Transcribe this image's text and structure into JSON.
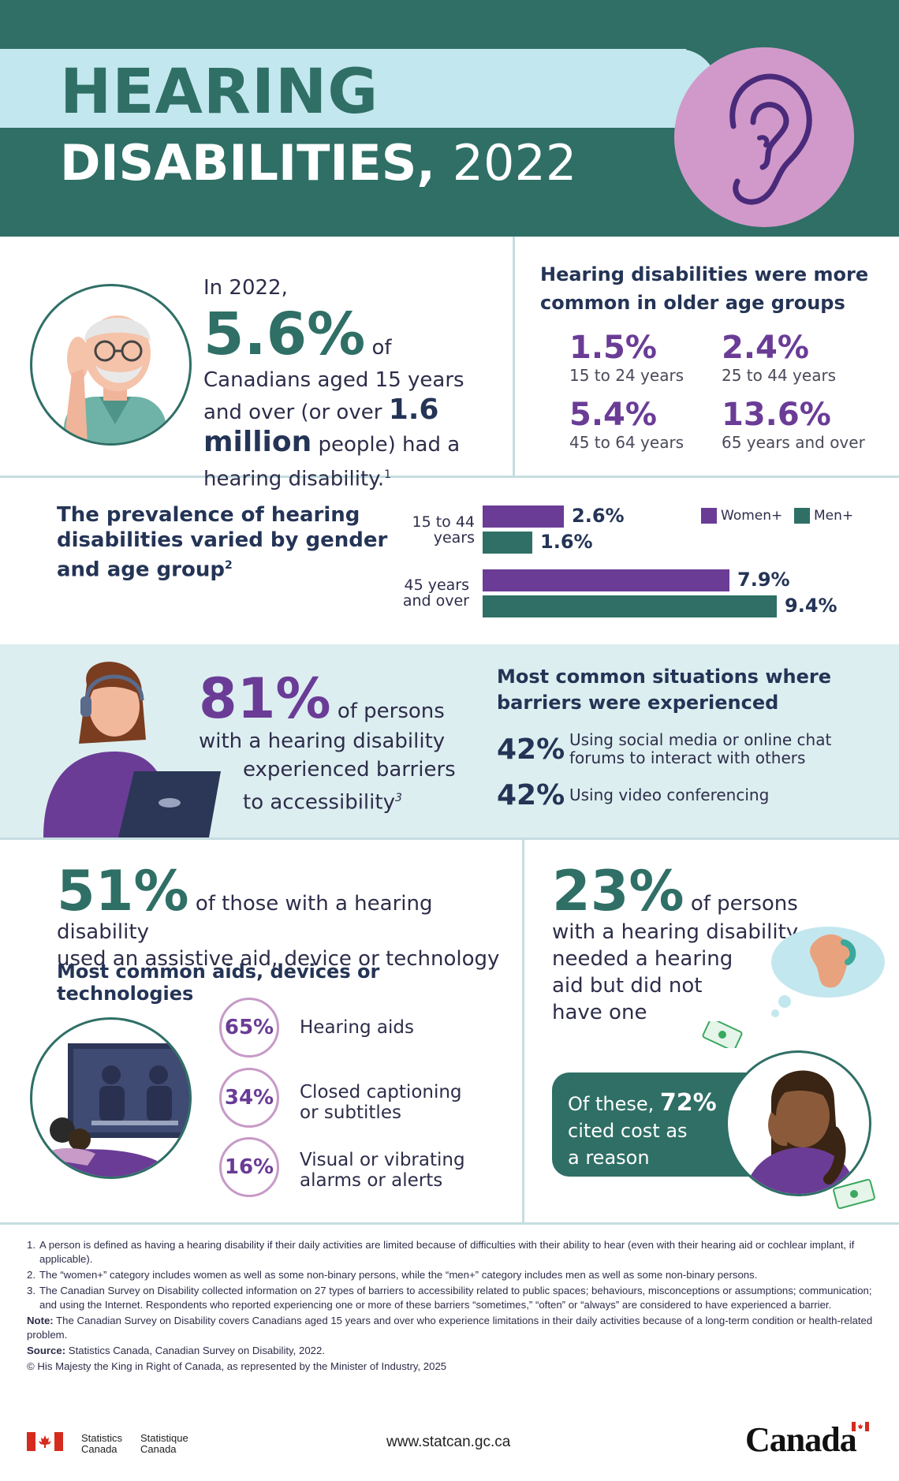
{
  "header": {
    "title_line1": "HEARING",
    "title_line2": "DISABILITIES,",
    "title_year": "2022",
    "colors": {
      "teal": "#2f6f66",
      "light_band": "#c3e7ee",
      "ear_circle": "#d199c9",
      "purple": "#6a3c96"
    },
    "icon": "ear-icon"
  },
  "overall": {
    "lead": "In 2022,",
    "pct": "5.6%",
    "t1": " of Canadians aged 15 years and over (or over ",
    "count": "1.6 million",
    "t2": " people) had a hearing disability.",
    "note": "1"
  },
  "age_groups": {
    "title": "Hearing disabilities were more common in older age groups",
    "items": [
      {
        "pct": "1.5%",
        "label": "15 to 24 years"
      },
      {
        "pct": "2.4%",
        "label": "25 to 44 years"
      },
      {
        "pct": "5.4%",
        "label": "45 to 64 years"
      },
      {
        "pct": "13.6%",
        "label": "65 years and over"
      }
    ]
  },
  "chart_data": {
    "type": "bar",
    "title": "The prevalence of hearing disabilities varied by gender and age group",
    "title_note": "2",
    "categories": [
      "15 to 44 years",
      "45 years and over"
    ],
    "series": [
      {
        "name": "Women+",
        "color": "#6a3c96",
        "values": [
          2.6,
          7.9
        ],
        "labels": [
          "2.6%",
          "7.9%"
        ]
      },
      {
        "name": "Men+",
        "color": "#2f6f66",
        "values": [
          1.6,
          9.4
        ],
        "labels": [
          "1.6%",
          "9.4%"
        ]
      }
    ],
    "legend": "top-right",
    "cat_lines": [
      [
        "15 to 44",
        "years"
      ],
      [
        "45 years",
        "and over"
      ]
    ]
  },
  "barriers": {
    "pct": "81%",
    "t1": " of persons with a hearing disability experienced barriers to accessibility",
    "line1": "of persons",
    "line2": "with a hearing disability",
    "line3": "experienced barriers",
    "line4": "to accessibility",
    "note": "3",
    "situations_title": "Most common situations where barriers were experienced",
    "situations": [
      {
        "pct": "42%",
        "label_l1": "Using social media or online chat",
        "label_l2": "forums to interact with others"
      },
      {
        "pct": "42%",
        "label_l1": "Using video conferencing",
        "label_l2": ""
      }
    ]
  },
  "aids": {
    "pct": "51%",
    "line1": "of those with a hearing disability",
    "line2": "used an assistive aid, device or technology",
    "list_title": "Most common aids, devices or technologies",
    "items": [
      {
        "pct": "65%",
        "l1": "Hearing aids",
        "l2": ""
      },
      {
        "pct": "34%",
        "l1": "Closed captioning",
        "l2": "or subtitles"
      },
      {
        "pct": "16%",
        "l1": "Visual or vibrating",
        "l2": "alarms or alerts"
      }
    ]
  },
  "unmet": {
    "pct": "23%",
    "line1": "of persons",
    "line2": "with a hearing disability",
    "line3": "needed a hearing",
    "line4": "aid but did not",
    "line5": "have one",
    "cost_pre": "Of these,",
    "cost_pct": "72%",
    "cost_l2": "cited cost as",
    "cost_l3": "a reason"
  },
  "notes": {
    "items": [
      {
        "n": "1.",
        "text": "A person is defined as having a hearing disability if their daily activities are limited because of difficulties with their ability to hear (even with their hearing aid or cochlear implant, if applicable)."
      },
      {
        "n": "2.",
        "text": "The “women+” category includes women as well as some non-binary persons, while the “men+” category includes men as well as some non-binary persons."
      },
      {
        "n": "3.",
        "text": "The Canadian Survey on Disability collected information on 27 types of barriers to accessibility related to public spaces; behaviours, misconceptions or assumptions; communication; and using the Internet. Respondents who reported experiencing one or more of these barriers “sometimes,” “often” or “always” are considered to have experienced a barrier."
      }
    ],
    "note_label": "Note:",
    "note_text": " The Canadian Survey on Disability covers Canadians aged 15 years and over who experience limitations in their daily activities because of a long-term condition or health-related problem.",
    "source_label": "Source:",
    "source_text": " Statistics Canada, Canadian Survey on Disability, 2022.",
    "copyright": "© His Majesty the King in Right of Canada, as represented by the Minister of Industry, 2025"
  },
  "footer": {
    "sc_en_1": "Statistics",
    "sc_en_2": "Canada",
    "sc_fr_1": "Statistique",
    "sc_fr_2": "Canada",
    "url": "www.statcan.gc.ca",
    "wordmark": "Canada"
  }
}
